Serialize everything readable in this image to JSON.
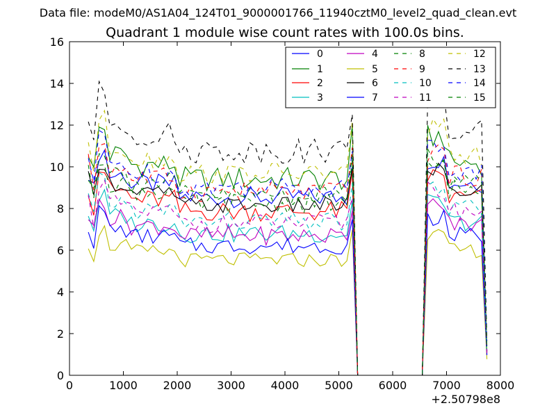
{
  "chart_data": {
    "type": "line",
    "suptitle": "Data file: modeM0/AS1A04_124T01_9000001766_11940cztM0_level2_quad_clean.evt",
    "title": "Quadrant 1 module wise count rates with 100.0s bins.",
    "xlabel": "",
    "ylabel": "",
    "x_offset_label": "+2.50798e8",
    "xlim": [
      0,
      8000
    ],
    "ylim": [
      0,
      16
    ],
    "xticks": [
      0,
      1000,
      2000,
      3000,
      4000,
      5000,
      6000,
      7000,
      8000
    ],
    "yticks": [
      0,
      2,
      4,
      6,
      8,
      10,
      12,
      14,
      16
    ],
    "grid": false,
    "legend": {
      "placement": "top-right",
      "columns": 4
    },
    "x": [
      350,
      450,
      550,
      650,
      750,
      850,
      950,
      1050,
      1150,
      1250,
      1350,
      1450,
      1550,
      1650,
      1750,
      1850,
      1950,
      2050,
      2150,
      2250,
      2350,
      2450,
      2550,
      2650,
      2750,
      2850,
      2950,
      3050,
      3150,
      3250,
      3350,
      3450,
      3550,
      3650,
      3750,
      3850,
      3950,
      4050,
      4150,
      4250,
      4350,
      4450,
      4550,
      4650,
      4750,
      4850,
      4950,
      5050,
      5150,
      5250,
      5350,
      5450,
      5550,
      5650,
      5750,
      5850,
      5950,
      6050,
      6150,
      6250,
      6350,
      6450,
      6550,
      6650,
      6750,
      6850,
      6950,
      7050,
      7150,
      7250,
      7350,
      7450,
      7550,
      7650,
      7750
    ],
    "series": [
      {
        "name": "0",
        "color": "#0000ff",
        "dash": false,
        "base": 8.8,
        "amp": 0.5
      },
      {
        "name": "1",
        "color": "#008000",
        "dash": false,
        "base": 9.7,
        "amp": 0.6
      },
      {
        "name": "2",
        "color": "#ff0000",
        "dash": false,
        "base": 8.1,
        "amp": 0.5
      },
      {
        "name": "3",
        "color": "#00bfbf",
        "dash": false,
        "base": 7.0,
        "amp": 0.45
      },
      {
        "name": "4",
        "color": "#bf00bf",
        "dash": false,
        "base": 6.9,
        "amp": 0.45
      },
      {
        "name": "5",
        "color": "#bfbf00",
        "dash": false,
        "base": 5.7,
        "amp": 0.35
      },
      {
        "name": "6",
        "color": "#000000",
        "dash": false,
        "base": 8.4,
        "amp": 0.4
      },
      {
        "name": "7",
        "color": "#0000ff",
        "dash": false,
        "base": 6.4,
        "amp": 0.4
      },
      {
        "name": "8",
        "color": "#008000",
        "dash": true,
        "base": 8.5,
        "amp": 0.5
      },
      {
        "name": "9",
        "color": "#ff0000",
        "dash": true,
        "base": 9.1,
        "amp": 0.5
      },
      {
        "name": "10",
        "color": "#00bfbf",
        "dash": true,
        "base": 7.6,
        "amp": 0.45
      },
      {
        "name": "11",
        "color": "#bf00bf",
        "dash": true,
        "base": 7.5,
        "amp": 0.45
      },
      {
        "name": "12",
        "color": "#bfbf00",
        "dash": true,
        "base": 10.0,
        "amp": 0.5
      },
      {
        "name": "13",
        "color": "#000000",
        "dash": true,
        "base": 11.1,
        "amp": 0.6
      },
      {
        "name": "14",
        "color": "#0000ff",
        "dash": true,
        "base": 9.3,
        "amp": 0.5
      },
      {
        "name": "15",
        "color": "#008000",
        "dash": true,
        "base": 8.9,
        "amp": 0.5
      }
    ]
  }
}
